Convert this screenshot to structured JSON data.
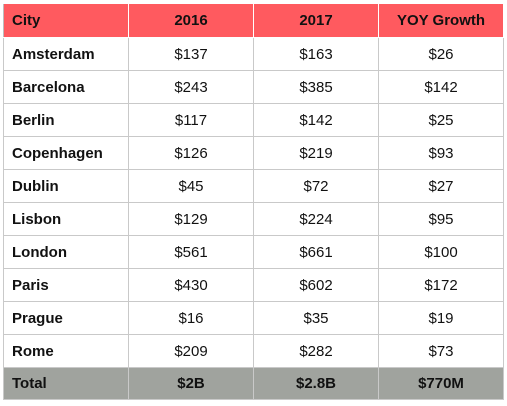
{
  "chart_data": {
    "type": "table",
    "columns": [
      "City",
      "2016",
      "2017",
      "YOY Growth"
    ],
    "rows": [
      {
        "city": "Amsterdam",
        "y2016": "$137",
        "y2017": "$163",
        "growth": "$26"
      },
      {
        "city": "Barcelona",
        "y2016": "$243",
        "y2017": "$385",
        "growth": "$142"
      },
      {
        "city": "Berlin",
        "y2016": "$117",
        "y2017": "$142",
        "growth": "$25"
      },
      {
        "city": "Copenhagen",
        "y2016": "$126",
        "y2017": "$219",
        "growth": "$93"
      },
      {
        "city": "Dublin",
        "y2016": "$45",
        "y2017": "$72",
        "growth": "$27"
      },
      {
        "city": "Lisbon",
        "y2016": "$129",
        "y2017": "$224",
        "growth": "$95"
      },
      {
        "city": "London",
        "y2016": "$561",
        "y2017": "$661",
        "growth": "$100"
      },
      {
        "city": "Paris",
        "y2016": "$430",
        "y2017": "$602",
        "growth": "$172"
      },
      {
        "city": "Prague",
        "y2016": "$16",
        "y2017": "$35",
        "growth": "$19"
      },
      {
        "city": "Rome",
        "y2016": "$209",
        "y2017": "$282",
        "growth": "$73"
      }
    ],
    "total": {
      "city": "Total",
      "y2016": "$2B",
      "y2017": "$2.8B",
      "growth": "$770M"
    }
  },
  "colors": {
    "header_bg": "#ff5a5f",
    "total_bg": "#a0a39e"
  }
}
